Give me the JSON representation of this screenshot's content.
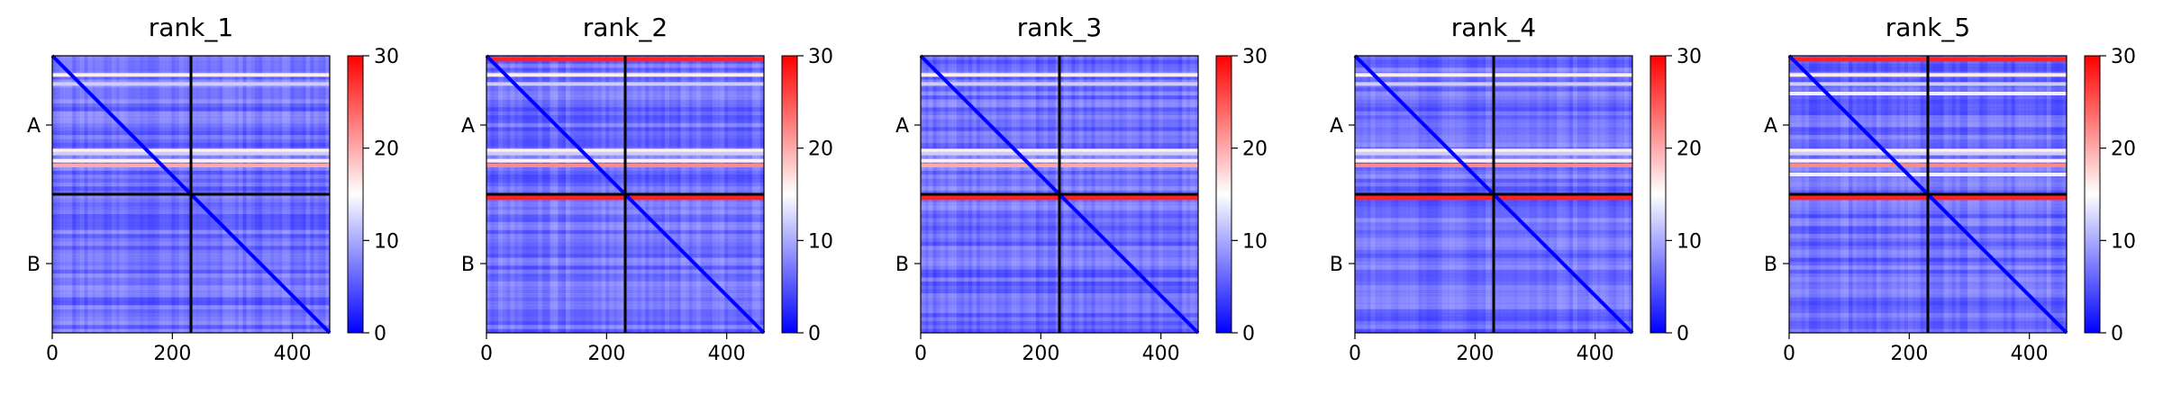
{
  "figure": {
    "colorscale": {
      "low": "#0000ff",
      "mid": "#ffffff",
      "high": "#ff0000",
      "min": 0,
      "max": 30
    },
    "chain_separator_color": "#000000"
  },
  "chart_data": [
    {
      "type": "heatmap",
      "title": "rank_1",
      "x_ticks": [
        0,
        200,
        400
      ],
      "y_ticks": [
        "A",
        "B"
      ],
      "xlim": [
        0,
        462
      ],
      "chain_boundary": 231,
      "colorbar": {
        "min": 0,
        "max": 30,
        "ticks": [
          0,
          10,
          20,
          30
        ]
      },
      "bright_rows": [
        29,
        44,
        155,
        160,
        172,
        180
      ],
      "bright_row_values": [
        16,
        12,
        16,
        12,
        16,
        20
      ],
      "max_value_rows": []
    },
    {
      "type": "heatmap",
      "title": "rank_2",
      "x_ticks": [
        0,
        200,
        400
      ],
      "y_ticks": [
        "A",
        "B"
      ],
      "xlim": [
        0,
        462
      ],
      "chain_boundary": 231,
      "colorbar": {
        "min": 0,
        "max": 30,
        "ticks": [
          0,
          10,
          20,
          30
        ]
      },
      "bright_rows": [
        29,
        44,
        155,
        160,
        172,
        180
      ],
      "bright_row_values": [
        16,
        12,
        16,
        12,
        16,
        22
      ],
      "max_value_rows": [
        2,
        233
      ]
    },
    {
      "type": "heatmap",
      "title": "rank_3",
      "x_ticks": [
        0,
        200,
        400
      ],
      "y_ticks": [
        "A",
        "B"
      ],
      "xlim": [
        0,
        462
      ],
      "chain_boundary": 231,
      "colorbar": {
        "min": 0,
        "max": 30,
        "ticks": [
          0,
          10,
          20,
          30
        ]
      },
      "bright_rows": [
        29,
        44,
        155,
        160,
        172,
        180
      ],
      "bright_row_values": [
        16,
        12,
        16,
        12,
        16,
        20
      ],
      "max_value_rows": [
        233
      ]
    },
    {
      "type": "heatmap",
      "title": "rank_4",
      "x_ticks": [
        0,
        200,
        400
      ],
      "y_ticks": [
        "A",
        "B"
      ],
      "xlim": [
        0,
        462
      ],
      "chain_boundary": 231,
      "colorbar": {
        "min": 0,
        "max": 30,
        "ticks": [
          0,
          10,
          20,
          30
        ]
      },
      "bright_rows": [
        29,
        44,
        155,
        160,
        172,
        180
      ],
      "bright_row_values": [
        16,
        12,
        16,
        12,
        16,
        22
      ],
      "max_value_rows": [
        233
      ]
    },
    {
      "type": "heatmap",
      "title": "rank_5",
      "x_ticks": [
        0,
        200,
        400
      ],
      "y_ticks": [
        "A",
        "B"
      ],
      "xlim": [
        0,
        462
      ],
      "chain_boundary": 231,
      "colorbar": {
        "min": 0,
        "max": 30,
        "ticks": [
          0,
          10,
          20,
          30
        ]
      },
      "bright_rows": [
        29,
        44,
        60,
        155,
        160,
        172,
        180,
        195
      ],
      "bright_row_values": [
        16,
        12,
        14,
        16,
        12,
        16,
        22,
        14
      ],
      "max_value_rows": [
        2,
        233
      ]
    }
  ]
}
